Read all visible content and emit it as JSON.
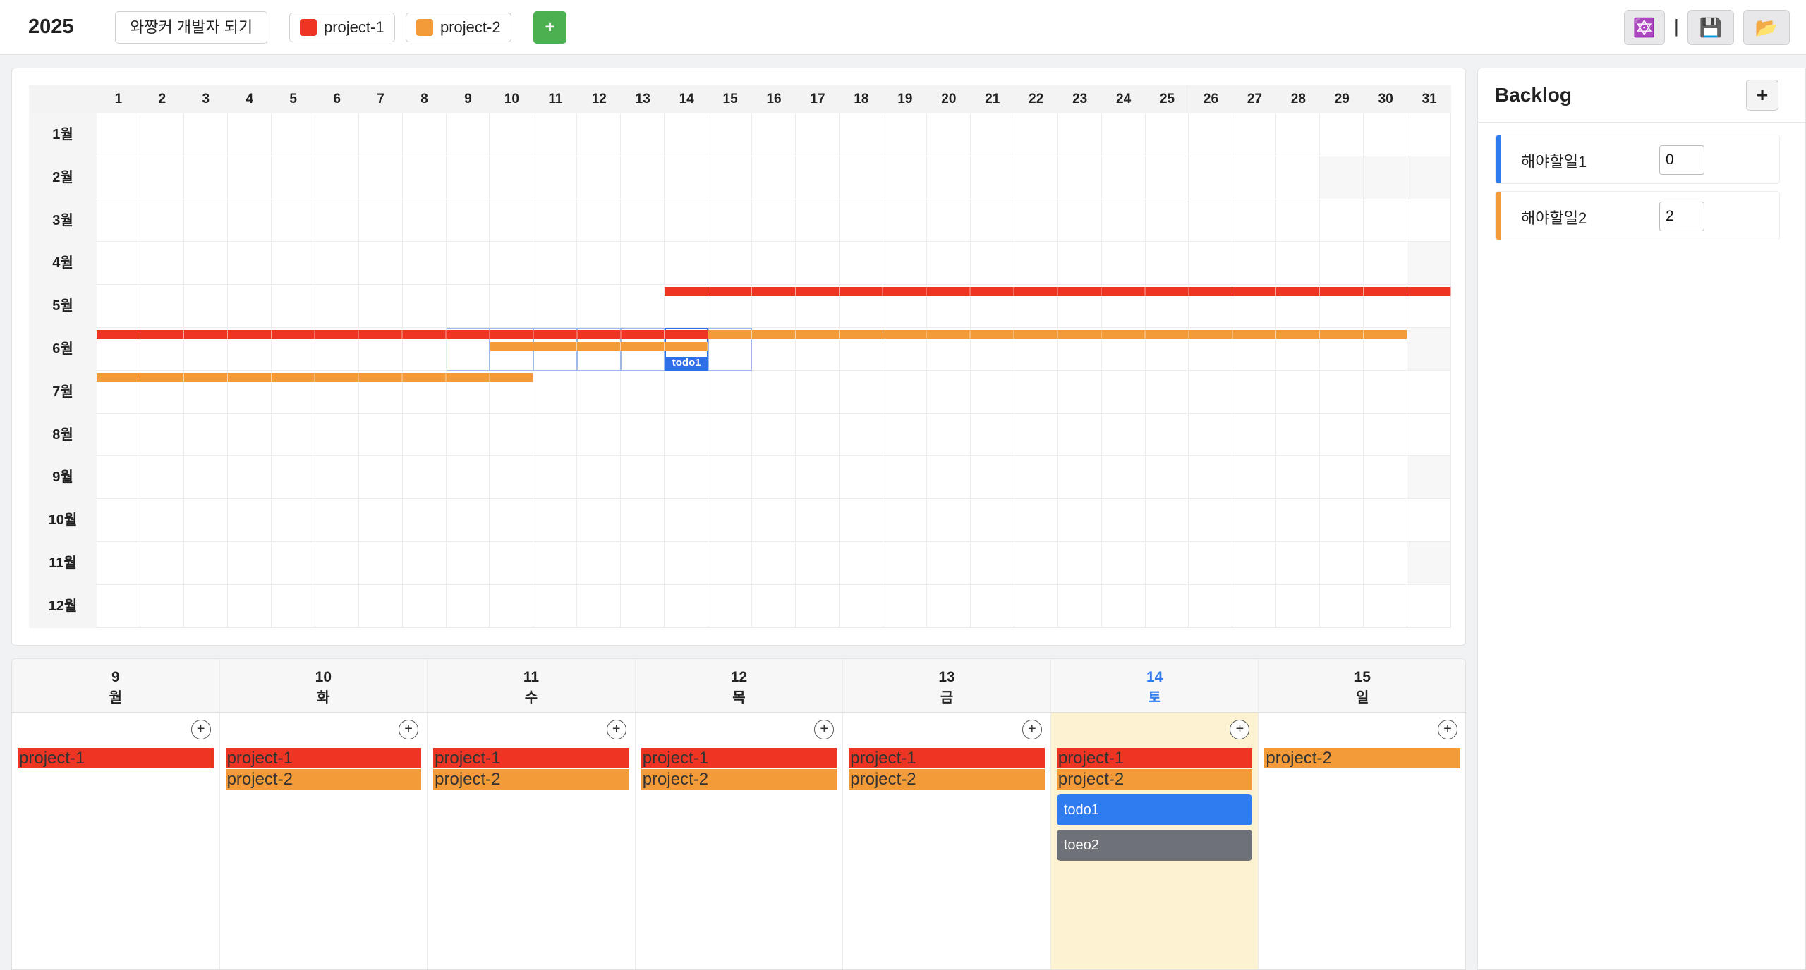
{
  "header": {
    "year": "2025",
    "goal_label": "와짱커 개발자 되기",
    "projects": [
      {
        "name": "project-1",
        "color": "#ee3524"
      },
      {
        "name": "project-2",
        "color": "#f29b38"
      }
    ],
    "add_label": "+",
    "separator": "|",
    "tools": [
      {
        "name": "theme-icon",
        "glyph": "🔯"
      },
      {
        "name": "save-icon",
        "glyph": "💾"
      },
      {
        "name": "folder-icon",
        "glyph": "📂"
      }
    ]
  },
  "year_grid": {
    "days": [
      "1",
      "2",
      "3",
      "4",
      "5",
      "6",
      "7",
      "8",
      "9",
      "10",
      "11",
      "12",
      "13",
      "14",
      "15",
      "16",
      "17",
      "18",
      "19",
      "20",
      "21",
      "22",
      "23",
      "24",
      "25",
      "26",
      "27",
      "28",
      "29",
      "30",
      "31"
    ],
    "months": [
      "1월",
      "2월",
      "3월",
      "4월",
      "5월",
      "6월",
      "7월",
      "8월",
      "9월",
      "10월",
      "11월",
      "12월"
    ],
    "month_lengths": [
      31,
      28,
      31,
      30,
      31,
      30,
      31,
      31,
      30,
      31,
      30,
      31
    ],
    "bars": [
      {
        "project": "project-1",
        "month": 5,
        "start_day": 14,
        "end_day": 31
      },
      {
        "project": "project-1",
        "month": 6,
        "start_day": 1,
        "end_day": 14
      },
      {
        "project": "project-2",
        "month": 6,
        "start_day": 15,
        "end_day": 30
      },
      {
        "project": "project-2",
        "month": 6,
        "start_day": 10,
        "end_day": 14
      },
      {
        "project": "project-2",
        "month": 7,
        "start_day": 1,
        "end_day": 10
      }
    ],
    "selected_week": {
      "month": 6,
      "start_day": 9,
      "end_day": 15
    },
    "today": {
      "month": 6,
      "day": 14
    },
    "todo_marker": "todo1"
  },
  "week": {
    "days": [
      {
        "date": "9",
        "weekday": "월",
        "bars": [
          "project-1"
        ],
        "todos": [],
        "today": false
      },
      {
        "date": "10",
        "weekday": "화",
        "bars": [
          "project-1",
          "project-2"
        ],
        "todos": [],
        "today": false
      },
      {
        "date": "11",
        "weekday": "수",
        "bars": [
          "project-1",
          "project-2"
        ],
        "todos": [],
        "today": false
      },
      {
        "date": "12",
        "weekday": "목",
        "bars": [
          "project-1",
          "project-2"
        ],
        "todos": [],
        "today": false
      },
      {
        "date": "13",
        "weekday": "금",
        "bars": [
          "project-1",
          "project-2"
        ],
        "todos": [],
        "today": false
      },
      {
        "date": "14",
        "weekday": "토",
        "bars": [
          "project-1",
          "project-2"
        ],
        "todos": [
          {
            "title": "todo1",
            "color": "#2f7bf0"
          },
          {
            "title": "toeo2",
            "color": "#6e7177"
          }
        ],
        "today": true
      },
      {
        "date": "15",
        "weekday": "일",
        "bars": [
          "project-2"
        ],
        "todos": [],
        "today": false
      }
    ],
    "add_label": "+"
  },
  "backlog": {
    "title": "Backlog",
    "add_label": "+",
    "items": [
      {
        "name": "해야할일1",
        "value": "0",
        "color": "#2f7bf0"
      },
      {
        "name": "해야할일2",
        "value": "2",
        "color": "#f29b38"
      }
    ]
  }
}
